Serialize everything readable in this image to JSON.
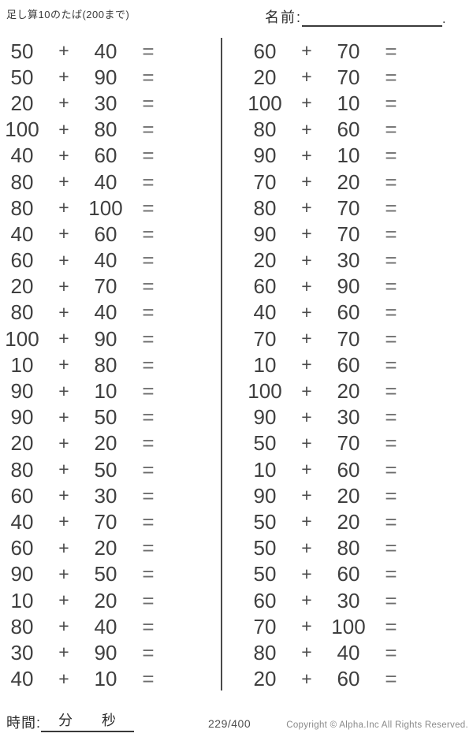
{
  "header": {
    "title": "足し算10のたば(200まで)",
    "name_label": "名前:",
    "name_value": "",
    "name_suffix": "."
  },
  "worksheet": {
    "operator": "+",
    "equals": "=",
    "columns": [
      {
        "problems": [
          {
            "a": "50",
            "b": "40"
          },
          {
            "a": "50",
            "b": "90"
          },
          {
            "a": "20",
            "b": "30"
          },
          {
            "a": "100",
            "b": "80"
          },
          {
            "a": "40",
            "b": "60"
          },
          {
            "a": "80",
            "b": "40"
          },
          {
            "a": "80",
            "b": "100"
          },
          {
            "a": "40",
            "b": "60"
          },
          {
            "a": "60",
            "b": "40"
          },
          {
            "a": "20",
            "b": "70"
          },
          {
            "a": "80",
            "b": "40"
          },
          {
            "a": "100",
            "b": "90"
          },
          {
            "a": "10",
            "b": "80"
          },
          {
            "a": "90",
            "b": "10"
          },
          {
            "a": "90",
            "b": "50"
          },
          {
            "a": "20",
            "b": "20"
          },
          {
            "a": "80",
            "b": "50"
          },
          {
            "a": "60",
            "b": "30"
          },
          {
            "a": "40",
            "b": "70"
          },
          {
            "a": "60",
            "b": "20"
          },
          {
            "a": "90",
            "b": "50"
          },
          {
            "a": "10",
            "b": "20"
          },
          {
            "a": "80",
            "b": "40"
          },
          {
            "a": "30",
            "b": "90"
          },
          {
            "a": "40",
            "b": "10"
          }
        ]
      },
      {
        "problems": [
          {
            "a": "60",
            "b": "70"
          },
          {
            "a": "20",
            "b": "70"
          },
          {
            "a": "100",
            "b": "10"
          },
          {
            "a": "80",
            "b": "60"
          },
          {
            "a": "90",
            "b": "10"
          },
          {
            "a": "70",
            "b": "20"
          },
          {
            "a": "80",
            "b": "70"
          },
          {
            "a": "90",
            "b": "70"
          },
          {
            "a": "20",
            "b": "30"
          },
          {
            "a": "60",
            "b": "90"
          },
          {
            "a": "40",
            "b": "60"
          },
          {
            "a": "70",
            "b": "70"
          },
          {
            "a": "10",
            "b": "60"
          },
          {
            "a": "100",
            "b": "20"
          },
          {
            "a": "90",
            "b": "30"
          },
          {
            "a": "50",
            "b": "70"
          },
          {
            "a": "10",
            "b": "60"
          },
          {
            "a": "90",
            "b": "20"
          },
          {
            "a": "50",
            "b": "20"
          },
          {
            "a": "50",
            "b": "80"
          },
          {
            "a": "50",
            "b": "60"
          },
          {
            "a": "60",
            "b": "30"
          },
          {
            "a": "70",
            "b": "100"
          },
          {
            "a": "80",
            "b": "40"
          },
          {
            "a": "20",
            "b": "60"
          }
        ]
      }
    ]
  },
  "footer": {
    "time_label": "時間:",
    "minutes_label": "分",
    "seconds_label": "秒",
    "page_number": "229/400",
    "copyright": "Copyright ©  Alpha.Inc All Rights Reserved."
  },
  "colors": {
    "ink": "#3f3f3f",
    "divider_line": "#4a4a4a",
    "equals_gray": "#6e6e6e",
    "muted_gray": "#8a8a8a",
    "background": "#ffffff"
  }
}
